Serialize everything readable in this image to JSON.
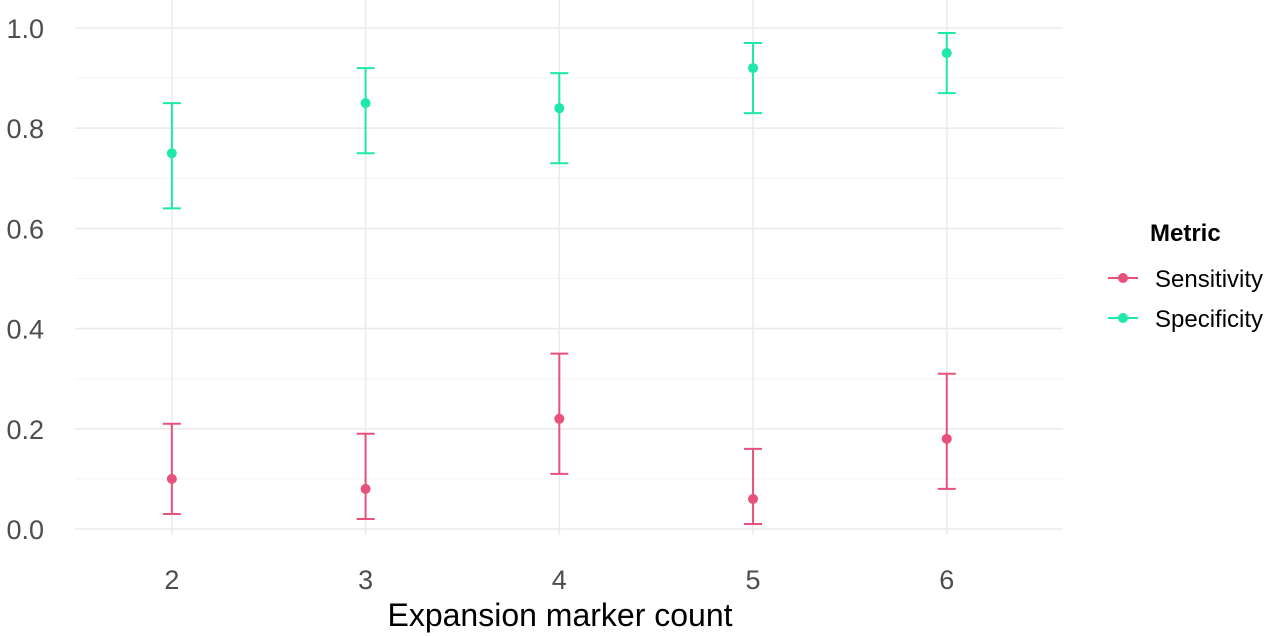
{
  "chart_data": {
    "type": "scatter",
    "xlabel": "Expansion marker count",
    "ylabel": "",
    "x": [
      2,
      3,
      4,
      5,
      6
    ],
    "x_tick_labels": [
      "2",
      "3",
      "4",
      "5",
      "6"
    ],
    "ylim": [
      0.0,
      1.0
    ],
    "y_tick_labels": [
      "0.0",
      "0.2",
      "0.4",
      "0.6",
      "0.8",
      "1.0"
    ],
    "grid": true,
    "legend": {
      "title": "Metric",
      "placement": "right"
    },
    "series": [
      {
        "name": "Sensitivity",
        "color": "#e8517a",
        "values": [
          0.1,
          0.08,
          0.22,
          0.06,
          0.18
        ],
        "lower": [
          0.03,
          0.02,
          0.11,
          0.01,
          0.08
        ],
        "upper": [
          0.21,
          0.19,
          0.35,
          0.16,
          0.31
        ]
      },
      {
        "name": "Specificity",
        "color": "#1ee8aa",
        "values": [
          0.75,
          0.85,
          0.84,
          0.92,
          0.95
        ],
        "lower": [
          0.64,
          0.75,
          0.73,
          0.83,
          0.87
        ],
        "upper": [
          0.85,
          0.92,
          0.91,
          0.97,
          0.99
        ]
      }
    ]
  }
}
